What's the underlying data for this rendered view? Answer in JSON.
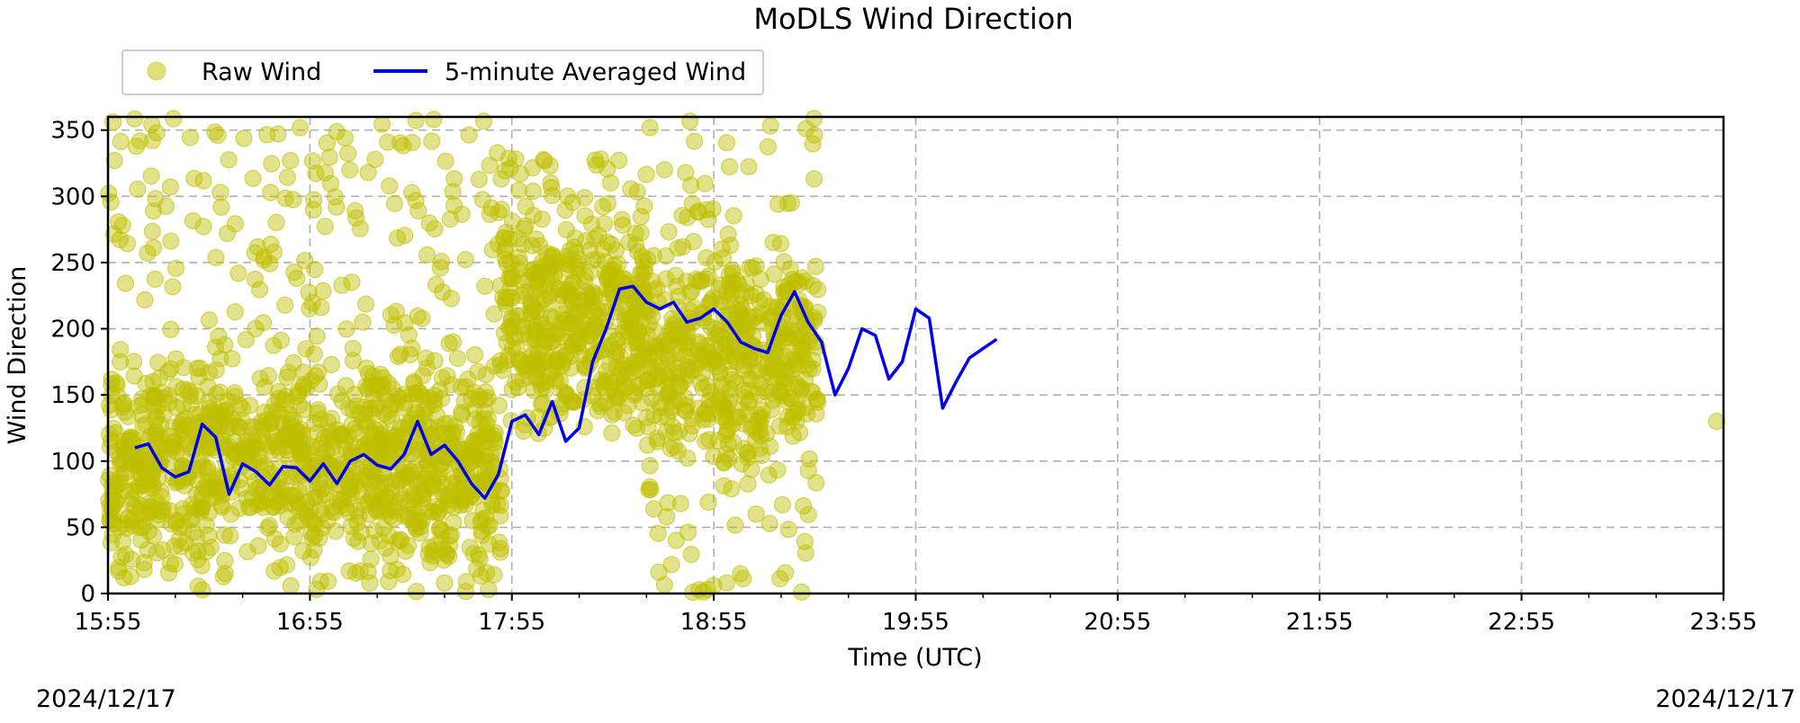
{
  "chart_data": {
    "type": "scatter",
    "title": "MoDLS Wind Direction",
    "xlabel": "Time (UTC)",
    "ylabel": "Wind Direction",
    "x_ticks": [
      "15:55",
      "16:55",
      "17:55",
      "18:55",
      "19:55",
      "20:55",
      "21:55",
      "22:55",
      "23:55"
    ],
    "xlim": [
      "15:55",
      "23:55"
    ],
    "ylim": [
      0,
      360
    ],
    "y_ticks": [
      0,
      50,
      100,
      150,
      200,
      250,
      300,
      350
    ],
    "grid": true,
    "legend_position": "top-left (above plot)",
    "date_left": "2024/12/17",
    "date_right": "2024/12/17",
    "colors": {
      "raw": "#bfbf00",
      "averaged": "#0000ee"
    },
    "series": [
      {
        "name": "Raw Wind",
        "style": "scatter",
        "note_values": "dense scatter, approximate bands per time window",
        "bands": [
          {
            "from": "15:55",
            "to": "17:52",
            "low": 0,
            "high": 360,
            "center": 100
          },
          {
            "from": "17:52",
            "to": "18:35",
            "low": 130,
            "high": 330,
            "center": 205
          },
          {
            "from": "18:35",
            "to": "19:26",
            "low": 0,
            "high": 360,
            "center": 180
          }
        ],
        "outliers": [
          {
            "x": "23:53",
            "y": 130
          }
        ]
      },
      {
        "name": "5-minute Averaged Wind",
        "style": "line",
        "points": [
          {
            "x": "16:03",
            "y": 110
          },
          {
            "x": "16:07",
            "y": 113
          },
          {
            "x": "16:11",
            "y": 95
          },
          {
            "x": "16:15",
            "y": 88
          },
          {
            "x": "16:19",
            "y": 92
          },
          {
            "x": "16:23",
            "y": 128
          },
          {
            "x": "16:27",
            "y": 118
          },
          {
            "x": "16:31",
            "y": 75
          },
          {
            "x": "16:35",
            "y": 98
          },
          {
            "x": "16:39",
            "y": 92
          },
          {
            "x": "16:43",
            "y": 82
          },
          {
            "x": "16:47",
            "y": 96
          },
          {
            "x": "16:51",
            "y": 95
          },
          {
            "x": "16:55",
            "y": 85
          },
          {
            "x": "16:59",
            "y": 98
          },
          {
            "x": "17:03",
            "y": 83
          },
          {
            "x": "17:07",
            "y": 100
          },
          {
            "x": "17:11",
            "y": 105
          },
          {
            "x": "17:15",
            "y": 97
          },
          {
            "x": "17:19",
            "y": 94
          },
          {
            "x": "17:23",
            "y": 105
          },
          {
            "x": "17:27",
            "y": 130
          },
          {
            "x": "17:31",
            "y": 105
          },
          {
            "x": "17:35",
            "y": 112
          },
          {
            "x": "17:39",
            "y": 100
          },
          {
            "x": "17:43",
            "y": 83
          },
          {
            "x": "17:47",
            "y": 72
          },
          {
            "x": "17:51",
            "y": 90
          },
          {
            "x": "17:55",
            "y": 130
          },
          {
            "x": "17:59",
            "y": 135
          },
          {
            "x": "18:03",
            "y": 120
          },
          {
            "x": "18:07",
            "y": 145
          },
          {
            "x": "18:11",
            "y": 115
          },
          {
            "x": "18:15",
            "y": 125
          },
          {
            "x": "18:19",
            "y": 175
          },
          {
            "x": "18:23",
            "y": 200
          },
          {
            "x": "18:27",
            "y": 230
          },
          {
            "x": "18:31",
            "y": 232
          },
          {
            "x": "18:35",
            "y": 220
          },
          {
            "x": "18:39",
            "y": 215
          },
          {
            "x": "18:43",
            "y": 220
          },
          {
            "x": "18:47",
            "y": 205
          },
          {
            "x": "18:51",
            "y": 208
          },
          {
            "x": "18:55",
            "y": 215
          },
          {
            "x": "18:59",
            "y": 205
          },
          {
            "x": "19:03",
            "y": 190
          },
          {
            "x": "19:07",
            "y": 185
          },
          {
            "x": "19:11",
            "y": 182
          },
          {
            "x": "19:15",
            "y": 210
          },
          {
            "x": "19:19",
            "y": 228
          },
          {
            "x": "19:23",
            "y": 205
          },
          {
            "x": "19:27",
            "y": 190
          },
          {
            "x": "19:31",
            "y": 150
          },
          {
            "x": "19:35",
            "y": 170
          },
          {
            "x": "19:39",
            "y": 200
          },
          {
            "x": "19:43",
            "y": 195
          },
          {
            "x": "19:47",
            "y": 162
          },
          {
            "x": "19:51",
            "y": 175
          },
          {
            "x": "19:55",
            "y": 215
          },
          {
            "x": "19:59",
            "y": 208
          },
          {
            "x": "20:03",
            "y": 140
          },
          {
            "x": "20:07",
            "y": 160
          },
          {
            "x": "20:11",
            "y": 178
          },
          {
            "x": "20:15",
            "y": 185
          },
          {
            "x": "20:19",
            "y": 192
          }
        ]
      }
    ]
  }
}
